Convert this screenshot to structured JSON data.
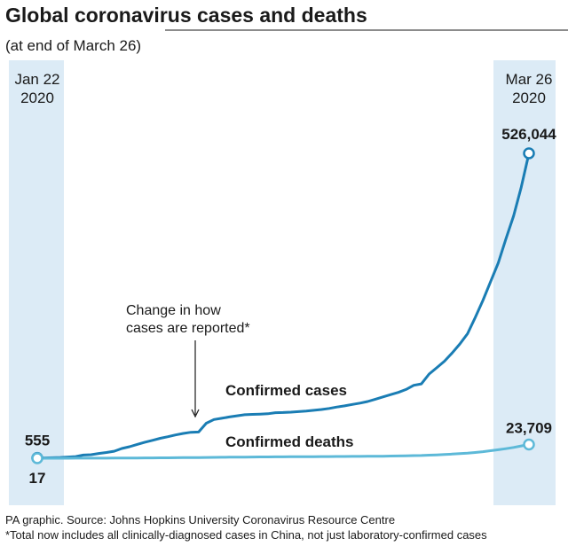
{
  "chart_data": {
    "type": "line",
    "title": "Global coronavirus cases and deaths",
    "subtitle": "(at end of March 26)",
    "categories": [
      "Jan 22 2020",
      null,
      null,
      null,
      null,
      null,
      null,
      null,
      null,
      null,
      null,
      null,
      null,
      null,
      null,
      null,
      null,
      null,
      null,
      null,
      null,
      null,
      null,
      null,
      null,
      null,
      null,
      null,
      null,
      null,
      null,
      null,
      null,
      null,
      null,
      null,
      null,
      null,
      null,
      null,
      null,
      null,
      null,
      null,
      null,
      null,
      null,
      null,
      null,
      null,
      null,
      null,
      null,
      null,
      null,
      null,
      null,
      null,
      null,
      null,
      null,
      null,
      null,
      null,
      "Mar 26 2020"
    ],
    "series": [
      {
        "name": "Confirmed cases",
        "color": "#1a7db4",
        "values": [
          555,
          654,
          941,
          1434,
          2118,
          2927,
          5578,
          6166,
          8234,
          9927,
          12038,
          16787,
          19881,
          23892,
          27635,
          30817,
          34391,
          37120,
          40150,
          42762,
          44802,
          45221,
          60368,
          66885,
          69030,
          71224,
          73258,
          75136,
          75639,
          76197,
          76819,
          78572,
          78958,
          79561,
          80406,
          81388,
          82746,
          84112,
          86011,
          88369,
          90306,
          92840,
          95120,
          97886,
          101801,
          105847,
          109821,
          113590,
          118620,
          125875,
          128352,
          145205,
          156101,
          167454,
          181574,
          197102,
          214821,
          242570,
          272208,
          304507,
          336953,
          378235,
          418045,
          467653,
          526044
        ],
        "value_labels": [
          "555",
          null,
          null,
          null,
          null,
          null,
          null,
          null,
          null,
          null,
          null,
          null,
          null,
          null,
          null,
          null,
          null,
          null,
          null,
          null,
          null,
          null,
          null,
          null,
          null,
          null,
          null,
          null,
          null,
          null,
          null,
          null,
          null,
          null,
          null,
          null,
          null,
          null,
          null,
          null,
          null,
          null,
          null,
          null,
          null,
          null,
          null,
          null,
          null,
          null,
          null,
          null,
          null,
          null,
          null,
          null,
          null,
          null,
          null,
          null,
          null,
          null,
          null,
          null,
          "526,044"
        ]
      },
      {
        "name": "Confirmed deaths",
        "color": "#5db9d8",
        "values": [
          17,
          18,
          26,
          42,
          56,
          82,
          131,
          133,
          171,
          213,
          259,
          362,
          426,
          492,
          564,
          634,
          719,
          806,
          906,
          1013,
          1113,
          1118,
          1371,
          1523,
          1666,
          1770,
          1868,
          2007,
          2122,
          2247,
          2251,
          2458,
          2469,
          2629,
          2708,
          2770,
          2814,
          2872,
          2941,
          2996,
          3085,
          3160,
          3254,
          3348,
          3460,
          3558,
          3803,
          3996,
          4262,
          4615,
          4720,
          5404,
          5819,
          6440,
          7126,
          7905,
          8733,
          9867,
          11299,
          12973,
          14623,
          16497,
          18615,
          21181,
          23709
        ],
        "value_labels": [
          "17",
          null,
          null,
          null,
          null,
          null,
          null,
          null,
          null,
          null,
          null,
          null,
          null,
          null,
          null,
          null,
          null,
          null,
          null,
          null,
          null,
          null,
          null,
          null,
          null,
          null,
          null,
          null,
          null,
          null,
          null,
          null,
          null,
          null,
          null,
          null,
          null,
          null,
          null,
          null,
          null,
          null,
          null,
          null,
          null,
          null,
          null,
          null,
          null,
          null,
          null,
          null,
          null,
          null,
          null,
          null,
          null,
          null,
          null,
          null,
          null,
          null,
          null,
          null,
          "23,709"
        ]
      }
    ],
    "annotation": [
      "Change in how",
      "cases are reported*"
    ],
    "source": "PA graphic. Source: Johns Hopkins University Coronavirus Resource Centre",
    "footnote": "*Total now includes all clinically-diagnosed cases in China, not just laboratory-confirmed cases"
  }
}
